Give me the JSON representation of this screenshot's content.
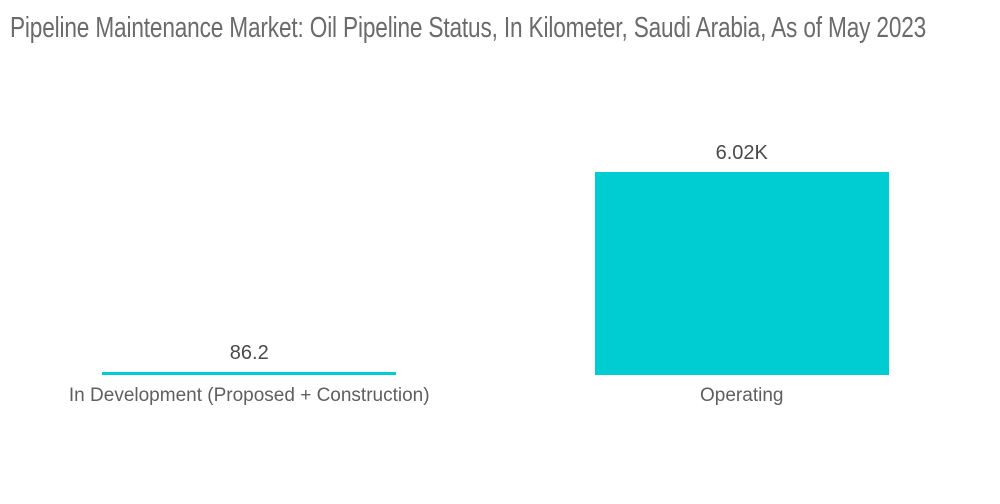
{
  "title": "Pipeline Maintenance Market: Oil Pipeline Status, In Kilometer, Saudi Arabia, As of May 2023",
  "chart_data": {
    "type": "bar",
    "title": "Pipeline Maintenance Market: Oil Pipeline Status, In Kilometer, Saudi Arabia, As of May 2023",
    "categories": [
      "In Development (Proposed + Construction)",
      "Operating"
    ],
    "values": [
      86.2,
      6020
    ],
    "value_labels": [
      "86.2",
      "6.02K"
    ],
    "unit": "Kilometer",
    "xlabel": "",
    "ylabel": "",
    "ylim": [
      0,
      6020
    ],
    "grid": false,
    "axes_hidden": true,
    "legend": "none",
    "bar_color": "#00CDD1"
  },
  "colors": {
    "bar": "#00CDD1",
    "title_text": "#6b6b6b",
    "value_text": "#4a4a4a",
    "category_text": "#5f5f5f",
    "background": "#ffffff"
  }
}
